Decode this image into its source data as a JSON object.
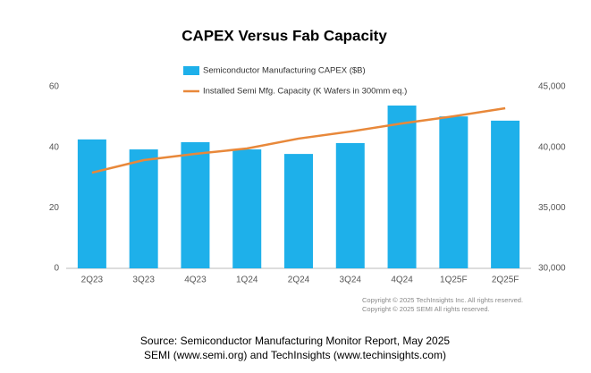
{
  "chart_data": {
    "type": "combo",
    "title": "CAPEX Versus Fab Capacity",
    "categories": [
      "2Q23",
      "3Q23",
      "4Q23",
      "1Q24",
      "2Q24",
      "3Q24",
      "4Q24",
      "1Q25F",
      "2Q25F"
    ],
    "series": [
      {
        "name": "Semiconductor Manufacturing CAPEX ($B)",
        "type": "bar",
        "color": "#1eb0ea",
        "values": [
          42.6,
          39.3,
          41.7,
          39.3,
          37.8,
          41.4,
          53.8,
          50.2,
          48.8
        ]
      },
      {
        "name": "Installed Semi Mfg. Capacity (K Wafers in 300mm eq.)",
        "type": "line",
        "axis": "y2",
        "color": "#e8883a",
        "values": [
          37900,
          38940,
          39460,
          39900,
          40720,
          41300,
          41970,
          42560,
          43230
        ]
      }
    ],
    "ylim": [
      0,
      60
    ],
    "yticks": [
      0,
      20,
      40,
      60
    ],
    "y2lim": [
      30000,
      45000
    ],
    "y2ticks": [
      {
        "value": 30000,
        "label": "30,000"
      },
      {
        "value": 35000,
        "label": "35,000"
      },
      {
        "value": 40000,
        "label": "40,000"
      },
      {
        "value": 45000,
        "label": "45,000"
      }
    ],
    "grid": false,
    "notes": [
      "Copyright © 2025 TechInsights Inc.  All rights reserved.",
      "Copyright © 2025 SEMI   All rights reserved."
    ],
    "source": [
      "Source: Semiconductor Manufacturing Monitor Report, May 2025",
      "SEMI (www.semi.org) and TechInsights (www.techinsights.com)"
    ]
  }
}
